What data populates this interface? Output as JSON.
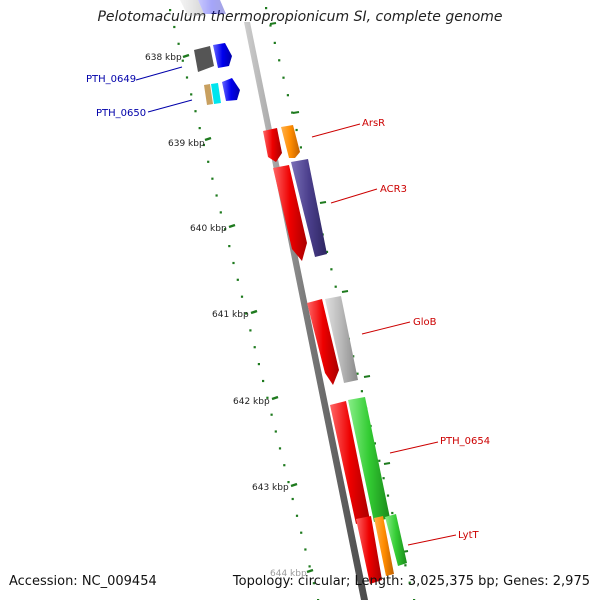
{
  "title": "Pelotomaculum thermopropionicum SI, complete genome",
  "footer": {
    "accession": "Accession: NC_009454",
    "summary": "Topology: circular; Length: 3,025,375 bp; Genes: 2,975"
  },
  "ruler_ticks": [
    {
      "label": "638 kbp"
    },
    {
      "label": "639 kbp"
    },
    {
      "label": "640 kbp"
    },
    {
      "label": "641 kbp"
    },
    {
      "label": "642 kbp"
    },
    {
      "label": "643 kbp"
    },
    {
      "label": "644 kbp"
    }
  ],
  "gene_labels": [
    {
      "name": "PTH_0649",
      "color": "#0000aa"
    },
    {
      "name": "PTH_0650",
      "color": "#0000aa"
    },
    {
      "name": "ArsR",
      "color": "#cc0000"
    },
    {
      "name": "ACR3",
      "color": "#cc0000"
    },
    {
      "name": "GloB",
      "color": "#cc0000"
    },
    {
      "name": "PTH_0654",
      "color": "#cc0000"
    },
    {
      "name": "LytT",
      "color": "#cc0000"
    }
  ],
  "colors": {
    "backbone": "#7a7a7a",
    "tick": "#1e7a1e",
    "cds_red": "#ee0000",
    "orange": "#ff8c00",
    "purple": "#4b3f8c",
    "gray": "#b0b0b0",
    "green": "#33cc33",
    "blue": "#0000ee",
    "cyan": "#00e5ee",
    "tan": "#c8a060"
  }
}
